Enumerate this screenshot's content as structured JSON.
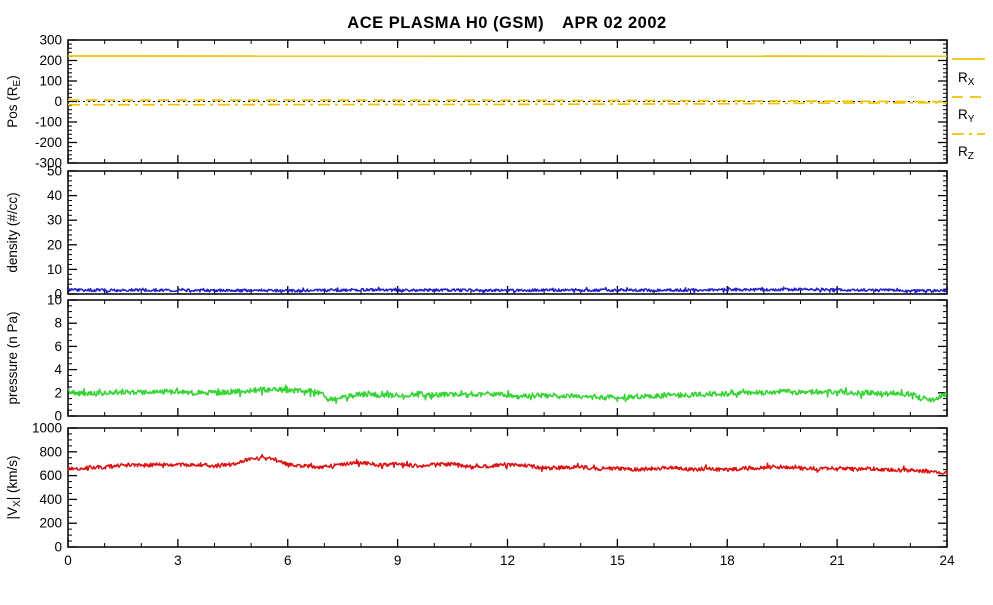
{
  "title": {
    "instrument": "ACE PLASMA H0 (GSM)",
    "date": "APR 02 2002"
  },
  "colors": {
    "gold": "#F0C400",
    "blue": "#2222CC",
    "green": "#33D433",
    "red": "#DD1111",
    "axis": "#000000",
    "background": "#FFFFFF"
  },
  "chart_data": {
    "type": "line",
    "title": "ACE PLASMA H0 (GSM)   APR 02 2002",
    "x": {
      "lim": [
        0,
        24
      ],
      "ticks": [
        0,
        3,
        6,
        9,
        12,
        15,
        18,
        21,
        24
      ],
      "tick_labels": [
        "0",
        "3",
        "6",
        "9",
        "12",
        "15",
        "18",
        "21",
        "24"
      ],
      "minor_step": 1
    },
    "legend": {
      "color": "#F0C400",
      "position": "right-of-position-panel",
      "entries": [
        {
          "pre": "R",
          "sub": "X",
          "style": "solid"
        },
        {
          "pre": "R",
          "sub": "Y",
          "style": "dashed"
        },
        {
          "pre": "R",
          "sub": "Z",
          "style": "dashdot"
        }
      ]
    },
    "panels": [
      {
        "id": "pos",
        "ylabel": {
          "pre": "Pos (R",
          "sub": "E",
          "post": ")"
        },
        "ylim": [
          -300,
          300
        ],
        "yticks": [
          -300,
          -200,
          -100,
          0,
          100,
          200,
          300
        ],
        "ytick_labels": [
          "-300",
          "-200",
          "-100",
          "0",
          "100",
          "200",
          "300"
        ],
        "yminor_step": 20,
        "show_xlabels": false,
        "series": [
          {
            "name": "zero-line",
            "color": "#000000",
            "style": "dotted",
            "width": 1.1,
            "noise": 0,
            "seed": 1,
            "anchors": [
              [
                0,
                0
              ],
              [
                24,
                0
              ]
            ]
          },
          {
            "name": "R_X",
            "color": "#F0C400",
            "style": "solid",
            "width": 1.7,
            "noise": 0,
            "seed": 2,
            "anchors": [
              [
                0,
                222
              ],
              [
                24,
                221
              ]
            ]
          },
          {
            "name": "R_Y",
            "color": "#F0C400",
            "style": "dashed",
            "width": 1.7,
            "noise": 0,
            "seed": 3,
            "anchors": [
              [
                0,
                7
              ],
              [
                6,
                7
              ],
              [
                12,
                6
              ],
              [
                18,
                4
              ],
              [
                22,
                1
              ],
              [
                24,
                -2
              ]
            ]
          },
          {
            "name": "R_Z",
            "color": "#F0C400",
            "style": "dashdot",
            "width": 1.7,
            "noise": 0,
            "seed": 4,
            "anchors": [
              [
                0,
                -16
              ],
              [
                6,
                -15
              ],
              [
                12,
                -14
              ],
              [
                18,
                -11
              ],
              [
                21,
                -8
              ],
              [
                24,
                -6
              ]
            ]
          }
        ]
      },
      {
        "id": "density",
        "ylabel": {
          "pre": "density (#/cc)",
          "sub": "",
          "post": ""
        },
        "ylim": [
          0,
          50
        ],
        "yticks": [
          0,
          10,
          20,
          30,
          40,
          50
        ],
        "ytick_labels": [
          "0",
          "10",
          "20",
          "30",
          "40",
          "50"
        ],
        "yminor_step": 2,
        "show_xlabels": false,
        "series": [
          {
            "name": "proton-density",
            "color": "#2222CC",
            "style": "solid",
            "width": 1.5,
            "noise": 0.55,
            "seed": 7,
            "anchors": [
              [
                0,
                1.7
              ],
              [
                1,
                1.5
              ],
              [
                2,
                1.6
              ],
              [
                3,
                1.5
              ],
              [
                4,
                1.4
              ],
              [
                5,
                1.5
              ],
              [
                6,
                1.3
              ],
              [
                7,
                1.5
              ],
              [
                8,
                1.7
              ],
              [
                9,
                1.5
              ],
              [
                10,
                1.6
              ],
              [
                11,
                1.5
              ],
              [
                12,
                1.4
              ],
              [
                13,
                1.5
              ],
              [
                14,
                1.6
              ],
              [
                15,
                1.5
              ],
              [
                16,
                1.5
              ],
              [
                17,
                1.6
              ],
              [
                18,
                1.8
              ],
              [
                19,
                1.7
              ],
              [
                20,
                1.9
              ],
              [
                21,
                1.7
              ],
              [
                22,
                1.6
              ],
              [
                23,
                1.4
              ],
              [
                24,
                1.2
              ]
            ]
          }
        ]
      },
      {
        "id": "pressure",
        "ylabel": {
          "pre": "pressure (n Pa)",
          "sub": "",
          "post": ""
        },
        "ylim": [
          0,
          10
        ],
        "yticks": [
          0,
          2,
          4,
          6,
          8,
          10
        ],
        "ytick_labels": [
          "0",
          "2",
          "4",
          "6",
          "8",
          "10"
        ],
        "yminor_step": 0.5,
        "show_xlabels": false,
        "series": [
          {
            "name": "flow-pressure",
            "color": "#33D433",
            "style": "solid",
            "width": 1.5,
            "noise": 0.22,
            "seed": 11,
            "anchors": [
              [
                0,
                2.1
              ],
              [
                0.5,
                1.9
              ],
              [
                1,
                2.0
              ],
              [
                1.5,
                2.1
              ],
              [
                2,
                2.0
              ],
              [
                2.5,
                2.1
              ],
              [
                3,
                2.1
              ],
              [
                3.5,
                2.0
              ],
              [
                4,
                2.0
              ],
              [
                4.5,
                2.1
              ],
              [
                5,
                2.2
              ],
              [
                5.5,
                2.3
              ],
              [
                6,
                2.2
              ],
              [
                6.5,
                2.2
              ],
              [
                6.9,
                2.0
              ],
              [
                7.1,
                1.4
              ],
              [
                7.5,
                1.6
              ],
              [
                8,
                1.9
              ],
              [
                8.5,
                1.8
              ],
              [
                9,
                1.8
              ],
              [
                9.5,
                1.9
              ],
              [
                10,
                1.8
              ],
              [
                10.5,
                1.9
              ],
              [
                11,
                1.8
              ],
              [
                11.5,
                1.9
              ],
              [
                12,
                1.8
              ],
              [
                12.5,
                1.7
              ],
              [
                13,
                1.8
              ],
              [
                13.5,
                1.7
              ],
              [
                14,
                1.7
              ],
              [
                14.5,
                1.6
              ],
              [
                15,
                1.6
              ],
              [
                15.5,
                1.7
              ],
              [
                16,
                1.7
              ],
              [
                16.5,
                1.8
              ],
              [
                17,
                1.8
              ],
              [
                17.5,
                1.9
              ],
              [
                18,
                1.9
              ],
              [
                18.5,
                2.0
              ],
              [
                19,
                2.0
              ],
              [
                19.5,
                2.1
              ],
              [
                20,
                2.0
              ],
              [
                20.5,
                2.1
              ],
              [
                21,
                2.1
              ],
              [
                21.5,
                2.0
              ],
              [
                22,
                2.0
              ],
              [
                22.5,
                1.9
              ],
              [
                23,
                1.9
              ],
              [
                23.3,
                1.5
              ],
              [
                23.6,
                1.4
              ],
              [
                24,
                1.9
              ]
            ]
          }
        ]
      },
      {
        "id": "vx",
        "ylabel": {
          "pre": "|V",
          "sub": "X",
          "post": "| (km/s)"
        },
        "ylim": [
          0,
          1000
        ],
        "yticks": [
          0,
          200,
          400,
          600,
          800,
          1000
        ],
        "ytick_labels": [
          "0",
          "200",
          "400",
          "600",
          "800",
          "1000"
        ],
        "yminor_step": 50,
        "show_xlabels": true,
        "series": [
          {
            "name": "vx-magnitude",
            "color": "#DD1111",
            "style": "solid",
            "width": 1.5,
            "noise": 16,
            "seed": 5,
            "anchors": [
              [
                0,
                655
              ],
              [
                0.5,
                668
              ],
              [
                1,
                672
              ],
              [
                1.5,
                690
              ],
              [
                2,
                685
              ],
              [
                2.5,
                695
              ],
              [
                3,
                688
              ],
              [
                3.5,
                695
              ],
              [
                4,
                682
              ],
              [
                4.5,
                695
              ],
              [
                5,
                742
              ],
              [
                5.3,
                748
              ],
              [
                5.7,
                738
              ],
              [
                6,
                692
              ],
              [
                6.5,
                680
              ],
              [
                7,
                672
              ],
              [
                7.5,
                695
              ],
              [
                8,
                708
              ],
              [
                8.5,
                688
              ],
              [
                9,
                698
              ],
              [
                9.5,
                682
              ],
              [
                10,
                690
              ],
              [
                10.5,
                698
              ],
              [
                11,
                672
              ],
              [
                11.5,
                678
              ],
              [
                12,
                695
              ],
              [
                12.5,
                688
              ],
              [
                13,
                662
              ],
              [
                13.5,
                668
              ],
              [
                14,
                672
              ],
              [
                14.5,
                658
              ],
              [
                15,
                662
              ],
              [
                15.5,
                652
              ],
              [
                16,
                660
              ],
              [
                16.5,
                665
              ],
              [
                17,
                652
              ],
              [
                17.5,
                658
              ],
              [
                18,
                648
              ],
              [
                18.5,
                662
              ],
              [
                19,
                668
              ],
              [
                19.5,
                672
              ],
              [
                20,
                662
              ],
              [
                20.5,
                658
              ],
              [
                21,
                662
              ],
              [
                21.5,
                652
              ],
              [
                22,
                658
              ],
              [
                22.5,
                648
              ],
              [
                23,
                645
              ],
              [
                23.5,
                638
              ],
              [
                24,
                618
              ]
            ]
          }
        ]
      }
    ]
  }
}
